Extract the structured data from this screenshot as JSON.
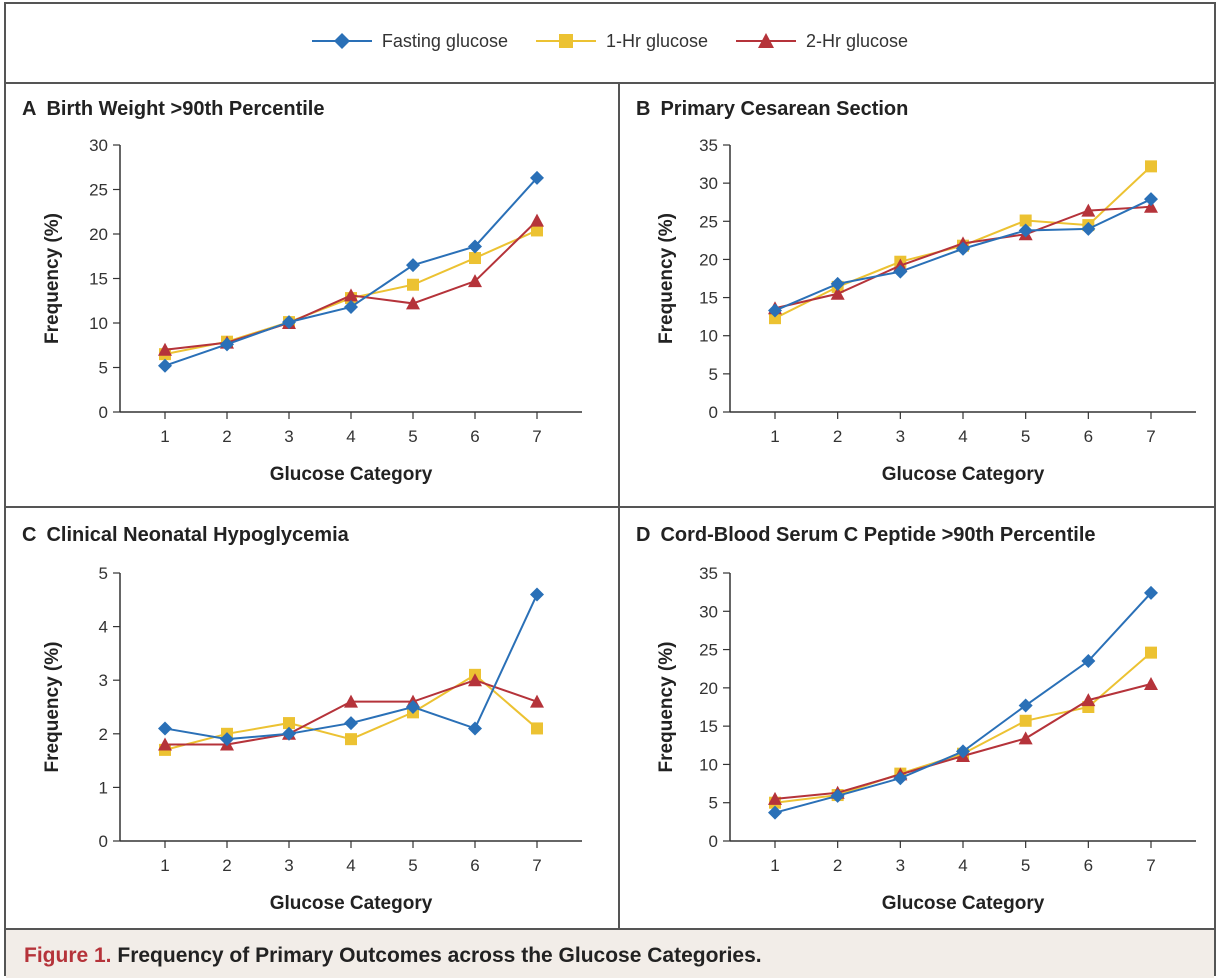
{
  "legend": {
    "items": [
      {
        "name": "Fasting glucose",
        "color": "#2a70b7",
        "marker": "diamond"
      },
      {
        "name": "1-Hr glucose",
        "color": "#ecc232",
        "marker": "square"
      },
      {
        "name": "2-Hr glucose",
        "color": "#b5333a",
        "marker": "triangle"
      }
    ]
  },
  "footer": {
    "figure_number": "Figure 1.",
    "caption": "Frequency of Primary Outcomes across the Glucose Categories."
  },
  "chart_data": [
    {
      "type": "line",
      "letter": "A",
      "title": "Birth Weight >90th Percentile",
      "xlabel": "Glucose Category",
      "ylabel": "Frequency (%)",
      "ylim": [
        0,
        30
      ],
      "yticks": [
        0,
        5,
        10,
        15,
        20,
        25,
        30
      ],
      "categories": [
        1,
        2,
        3,
        4,
        5,
        6,
        7
      ],
      "series": [
        {
          "name": "Fasting glucose",
          "values": [
            5.2,
            7.6,
            10.1,
            11.8,
            16.5,
            18.6,
            26.3
          ]
        },
        {
          "name": "1-Hr glucose",
          "values": [
            6.5,
            7.9,
            10.1,
            12.8,
            14.3,
            17.3,
            20.4
          ]
        },
        {
          "name": "2-Hr glucose",
          "values": [
            7.0,
            7.8,
            10.0,
            13.1,
            12.2,
            14.7,
            21.5
          ]
        }
      ]
    },
    {
      "type": "line",
      "letter": "B",
      "title": "Primary Cesarean Section",
      "xlabel": "Glucose Category",
      "ylabel": "Frequency (%)",
      "ylim": [
        0,
        35
      ],
      "yticks": [
        0,
        5,
        10,
        15,
        20,
        25,
        30,
        35
      ],
      "categories": [
        1,
        2,
        3,
        4,
        5,
        6,
        7
      ],
      "series": [
        {
          "name": "Fasting glucose",
          "values": [
            13.3,
            16.8,
            18.4,
            21.4,
            23.8,
            24.0,
            27.9
          ]
        },
        {
          "name": "1-Hr glucose",
          "values": [
            12.3,
            16.4,
            19.7,
            21.8,
            25.1,
            24.5,
            32.2
          ]
        },
        {
          "name": "2-Hr glucose",
          "values": [
            13.6,
            15.5,
            19.2,
            22.1,
            23.3,
            26.4,
            26.9
          ]
        }
      ]
    },
    {
      "type": "line",
      "letter": "C",
      "title": "Clinical Neonatal Hypoglycemia",
      "xlabel": "Glucose Category",
      "ylabel": "Frequency (%)",
      "ylim": [
        0,
        5
      ],
      "yticks": [
        0,
        1,
        2,
        3,
        4,
        5
      ],
      "categories": [
        1,
        2,
        3,
        4,
        5,
        6,
        7
      ],
      "series": [
        {
          "name": "Fasting glucose",
          "values": [
            2.1,
            1.9,
            2.0,
            2.2,
            2.5,
            2.1,
            4.6
          ]
        },
        {
          "name": "1-Hr glucose",
          "values": [
            1.7,
            2.0,
            2.2,
            1.9,
            2.4,
            3.1,
            2.1
          ]
        },
        {
          "name": "2-Hr glucose",
          "values": [
            1.8,
            1.8,
            2.0,
            2.6,
            2.6,
            3.0,
            2.6
          ]
        }
      ]
    },
    {
      "type": "line",
      "letter": "D",
      "title": "Cord-Blood Serum C Peptide >90th Percentile",
      "xlabel": "Glucose Category",
      "ylabel": "Frequency (%)",
      "ylim": [
        0,
        35
      ],
      "yticks": [
        0,
        5,
        10,
        15,
        20,
        25,
        30,
        35
      ],
      "categories": [
        1,
        2,
        3,
        4,
        5,
        6,
        7
      ],
      "series": [
        {
          "name": "Fasting glucose",
          "values": [
            3.7,
            5.9,
            8.2,
            11.7,
            17.7,
            23.5,
            32.4
          ]
        },
        {
          "name": "1-Hr glucose",
          "values": [
            5.0,
            6.0,
            8.8,
            11.4,
            15.7,
            17.5,
            24.6
          ]
        },
        {
          "name": "2-Hr glucose",
          "values": [
            5.5,
            6.3,
            8.7,
            11.1,
            13.4,
            18.4,
            20.5
          ]
        }
      ]
    }
  ]
}
